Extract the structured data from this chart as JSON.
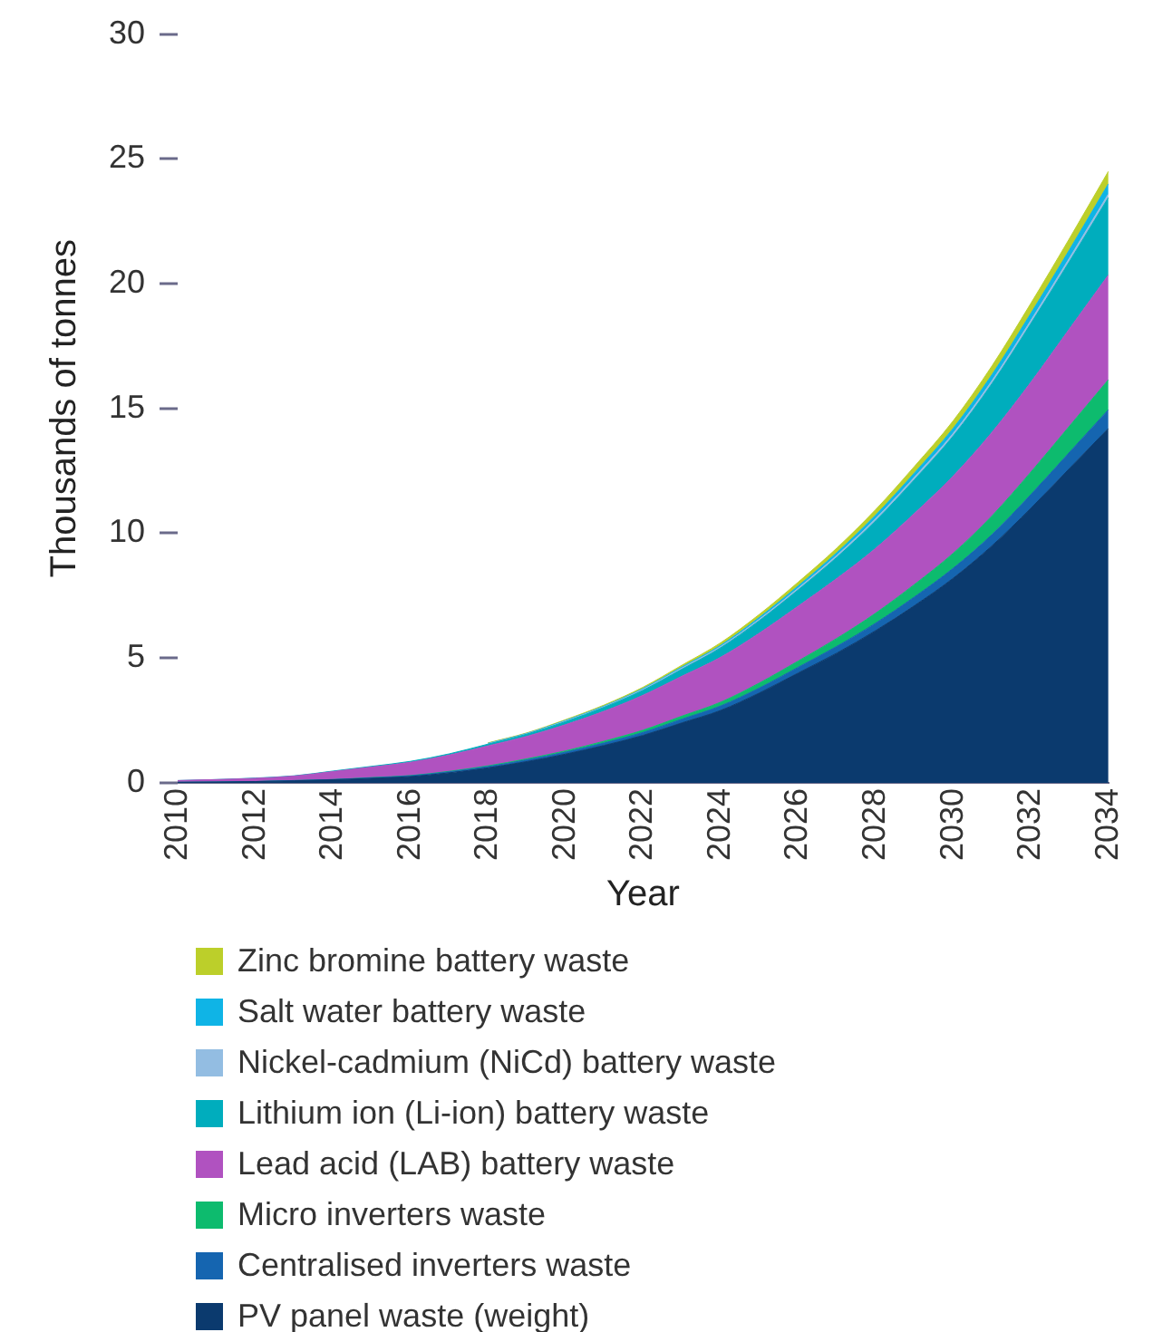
{
  "chart_data": {
    "type": "area",
    "xlabel": "Year",
    "ylabel": "Thousands of tonnes",
    "stacked": true,
    "legend": "bottom",
    "x": [
      2010,
      2011,
      2012,
      2013,
      2014,
      2015,
      2016,
      2017,
      2018,
      2019,
      2020,
      2021,
      2022,
      2023,
      2024,
      2025,
      2026,
      2027,
      2028,
      2029,
      2030,
      2031,
      2032,
      2033,
      2034
    ],
    "xlim": [
      2010,
      2034
    ],
    "xticks": [
      2010,
      2012,
      2014,
      2016,
      2018,
      2020,
      2022,
      2024,
      2026,
      2028,
      2030,
      2032,
      2034
    ],
    "ylim": [
      0,
      30
    ],
    "yticks": [
      0,
      5,
      10,
      15,
      20,
      25,
      30
    ],
    "series": [
      {
        "name": "PV panel waste (weight)",
        "color": "#0b3a6e",
        "values": [
          0.02,
          0.03,
          0.05,
          0.08,
          0.12,
          0.18,
          0.25,
          0.4,
          0.6,
          0.85,
          1.15,
          1.5,
          1.9,
          2.4,
          2.9,
          3.6,
          4.4,
          5.2,
          6.1,
          7.1,
          8.2,
          9.5,
          11.0,
          12.6,
          14.2
        ]
      },
      {
        "name": "Centralised inverters waste",
        "color": "#1565b0",
        "values": [
          0,
          0,
          0,
          0.01,
          0.01,
          0.02,
          0.03,
          0.04,
          0.05,
          0.07,
          0.08,
          0.1,
          0.12,
          0.15,
          0.18,
          0.2,
          0.23,
          0.27,
          0.3,
          0.35,
          0.4,
          0.45,
          0.55,
          0.65,
          0.75
        ]
      },
      {
        "name": "Micro inverters waste",
        "color": "#0dbb6e",
        "values": [
          0,
          0,
          0,
          0,
          0,
          0.01,
          0.01,
          0.02,
          0.03,
          0.04,
          0.05,
          0.07,
          0.09,
          0.12,
          0.15,
          0.2,
          0.25,
          0.32,
          0.4,
          0.5,
          0.6,
          0.75,
          0.9,
          1.05,
          1.2
        ]
      },
      {
        "name": "Lead acid (LAB) battery waste",
        "color": "#b052c0",
        "values": [
          0.07,
          0.1,
          0.13,
          0.18,
          0.32,
          0.42,
          0.53,
          0.65,
          0.8,
          0.9,
          1.05,
          1.2,
          1.4,
          1.6,
          1.8,
          2.0,
          2.2,
          2.4,
          2.6,
          2.85,
          3.1,
          3.35,
          3.6,
          3.9,
          4.2
        ]
      },
      {
        "name": "Lithium ion (Li-ion) battery waste",
        "color": "#00adbd",
        "values": [
          0,
          0,
          0.01,
          0.01,
          0.02,
          0.03,
          0.04,
          0.05,
          0.07,
          0.09,
          0.12,
          0.16,
          0.2,
          0.28,
          0.38,
          0.5,
          0.65,
          0.85,
          1.1,
          1.35,
          1.6,
          1.95,
          2.35,
          2.7,
          3.1
        ]
      },
      {
        "name": "Nickel-cadmium (NiCd) battery waste",
        "color": "#93bde2",
        "values": [
          null,
          null,
          null,
          null,
          null,
          null,
          null,
          null,
          0.02,
          0.02,
          0.03,
          0.03,
          0.04,
          0.05,
          0.05,
          0.06,
          0.07,
          0.08,
          0.09,
          0.1,
          0.11,
          0.12,
          0.13,
          0.14,
          0.15
        ]
      },
      {
        "name": "Salt water battery waste",
        "color": "#0fb4e6",
        "values": [
          null,
          null,
          null,
          null,
          null,
          null,
          null,
          null,
          0.01,
          0.01,
          0.02,
          0.02,
          0.03,
          0.04,
          0.05,
          0.07,
          0.09,
          0.11,
          0.14,
          0.17,
          0.2,
          0.24,
          0.28,
          0.33,
          0.4
        ]
      },
      {
        "name": "Zinc bromine battery waste",
        "color": "#bccf2a",
        "values": [
          null,
          null,
          null,
          null,
          null,
          null,
          null,
          null,
          0.02,
          0.02,
          0.03,
          0.04,
          0.05,
          0.07,
          0.1,
          0.12,
          0.15,
          0.18,
          0.22,
          0.26,
          0.3,
          0.35,
          0.4,
          0.45,
          0.5
        ]
      }
    ]
  }
}
